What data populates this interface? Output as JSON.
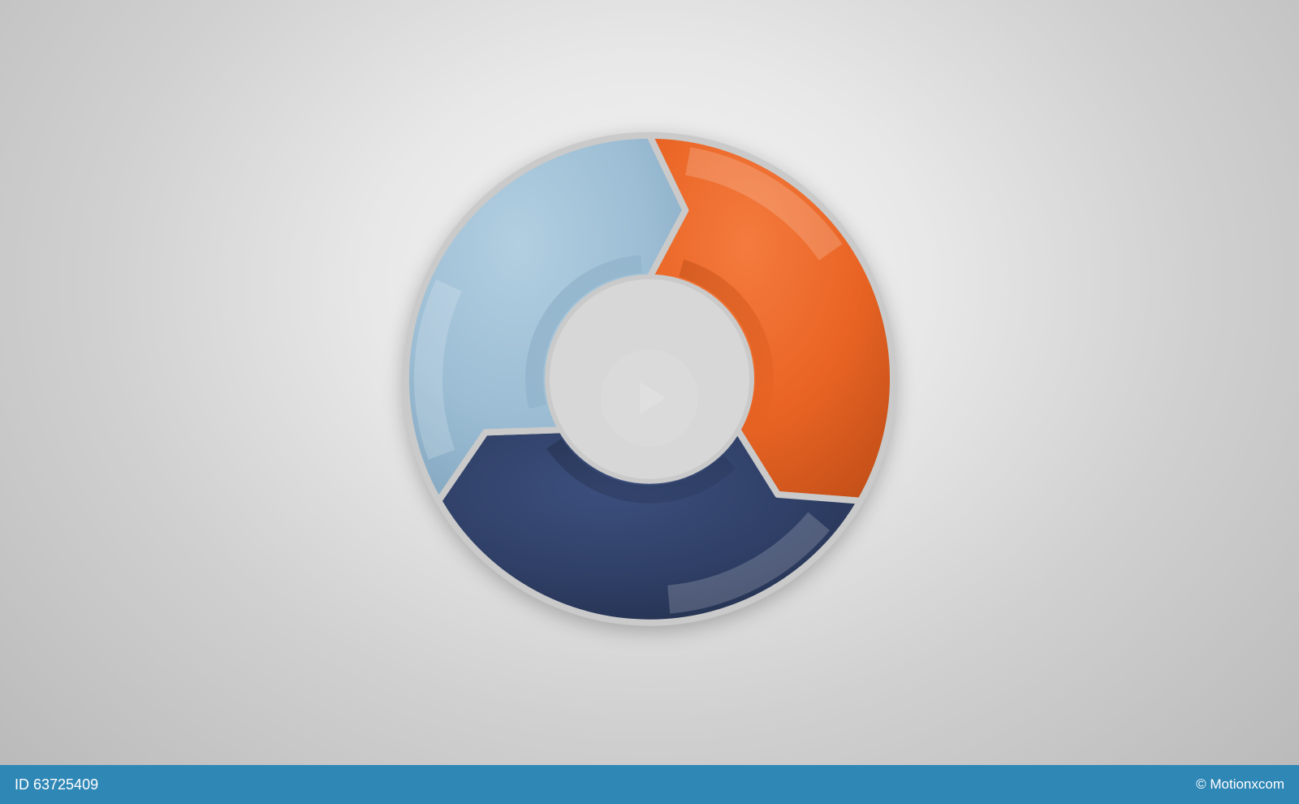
{
  "diagram": {
    "type": "circular-arrow-cycle",
    "segments": 3,
    "outer_radius": 300,
    "inner_radius": 125,
    "gap_color": "#c9cac9",
    "gap_width": 8,
    "center_fill": "#d6d7d6",
    "colors": {
      "segment_1": {
        "base": "#e96424",
        "highlight": "#f47b3e",
        "shadow": "#c24f18"
      },
      "segment_2": {
        "base": "#2f3f66",
        "highlight": "#3c4f7d",
        "shadow": "#222e4a"
      },
      "segment_3": {
        "base": "#9cbdd4",
        "highlight": "#b2cfe1",
        "shadow": "#7fa3bc"
      }
    },
    "rotation_start_deg": -90,
    "arrow_notch_depth_deg": 12
  },
  "background": {
    "gradient_center": "#f5f5f5",
    "gradient_edge": "#b8b8b8"
  },
  "footer": {
    "bar_color": "#2f87b6",
    "id_label": "ID 63725409",
    "credit": "© Motionxcom"
  }
}
